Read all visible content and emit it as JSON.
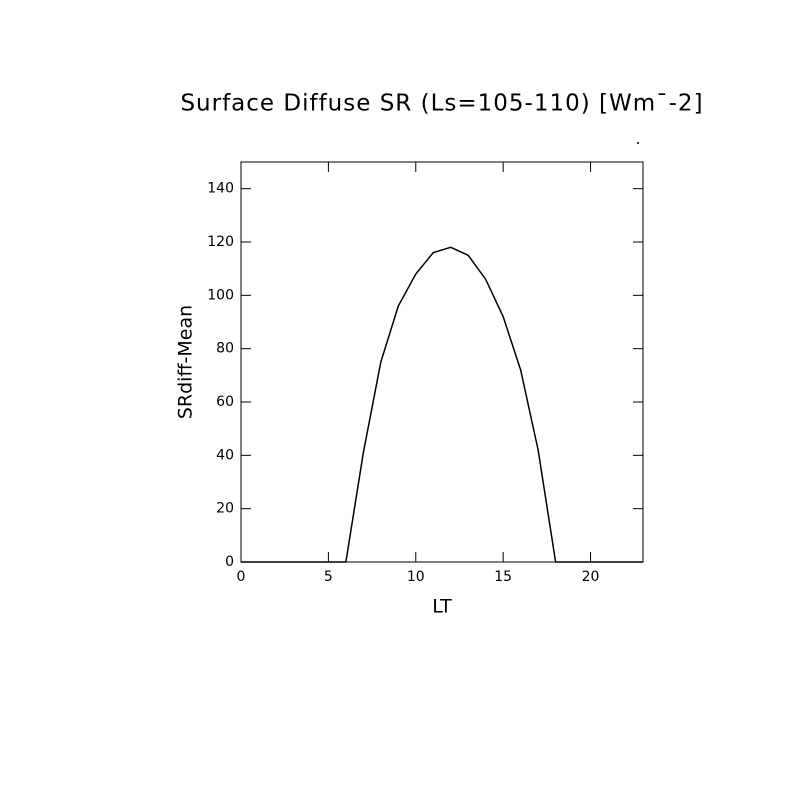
{
  "chart_data": {
    "type": "line",
    "title": "Surface Diffuse SR (Ls=105-110) [Wm¯-2]",
    "x_label": "LT",
    "y_label": "SRdiff-Mean",
    "x": [
      0,
      1,
      2,
      3,
      4,
      5,
      6,
      7,
      8,
      9,
      10,
      11,
      12,
      13,
      14,
      15,
      16,
      17,
      18,
      19,
      20,
      21,
      22,
      23
    ],
    "series": [
      {
        "name": "SRdiff-Mean",
        "color": "#000000",
        "values": [
          0,
          0,
          0,
          0,
          0,
          0,
          0,
          41,
          75,
          96,
          108,
          116,
          118,
          115,
          106,
          92,
          72,
          42,
          0,
          0,
          0,
          0,
          0,
          0
        ]
      }
    ],
    "xlim": [
      0,
      23
    ],
    "xticks": [
      0,
      5,
      10,
      15,
      20
    ],
    "ylim": [
      0,
      150
    ],
    "yticks": [
      0,
      20,
      40,
      60,
      80,
      100,
      120,
      140
    ]
  }
}
